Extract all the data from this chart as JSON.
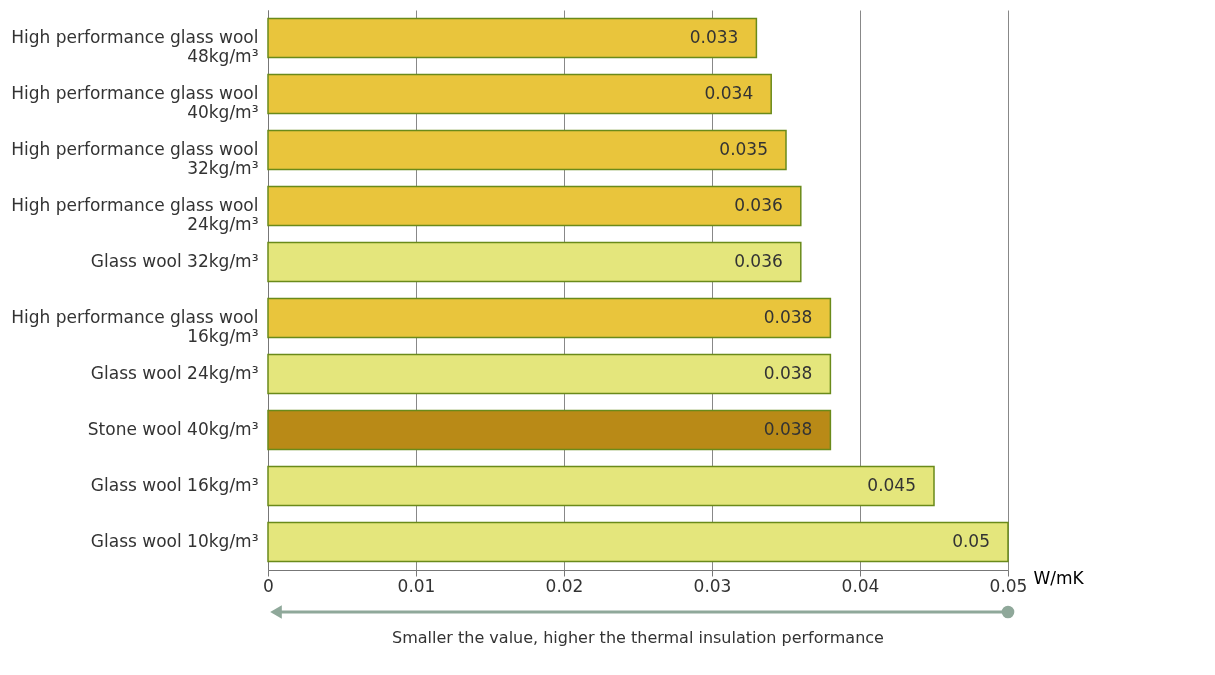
{
  "chart_data": {
    "type": "bar",
    "orientation": "horizontal",
    "categories": [
      "High performance glass wool\n48kg/m³",
      "High performance glass wool\n40kg/m³",
      "High performance glass wool\n32kg/m³",
      "High performance glass wool\n24kg/m³",
      "Glass wool 32kg/m³",
      "High performance glass wool\n16kg/m³",
      "Glass wool 24kg/m³",
      "Stone wool 40kg/m³",
      "Glass wool 16kg/m³",
      "Glass wool 10kg/m³"
    ],
    "values": [
      0.033,
      0.034,
      0.035,
      0.036,
      0.036,
      0.038,
      0.038,
      0.038,
      0.045,
      0.05
    ],
    "colors": [
      "#e9c53c",
      "#e9c53c",
      "#e9c53c",
      "#e9c53c",
      "#e4e67c",
      "#e9c53c",
      "#e4e67c",
      "#b98a17",
      "#e4e67c",
      "#e4e67c"
    ],
    "value_labels": [
      "0.033",
      "0.034",
      "0.035",
      "0.036",
      "0.036",
      "0.038",
      "0.038",
      "0.038",
      "0.045",
      "0.05"
    ],
    "xlim": [
      0,
      0.05
    ],
    "xticks": [
      0,
      0.01,
      0.02,
      0.03,
      0.04,
      0.05
    ],
    "xlabel": "W/mK",
    "grid": "x",
    "annotations": [
      "Smaller the value, higher the thermal insulation performance"
    ]
  }
}
